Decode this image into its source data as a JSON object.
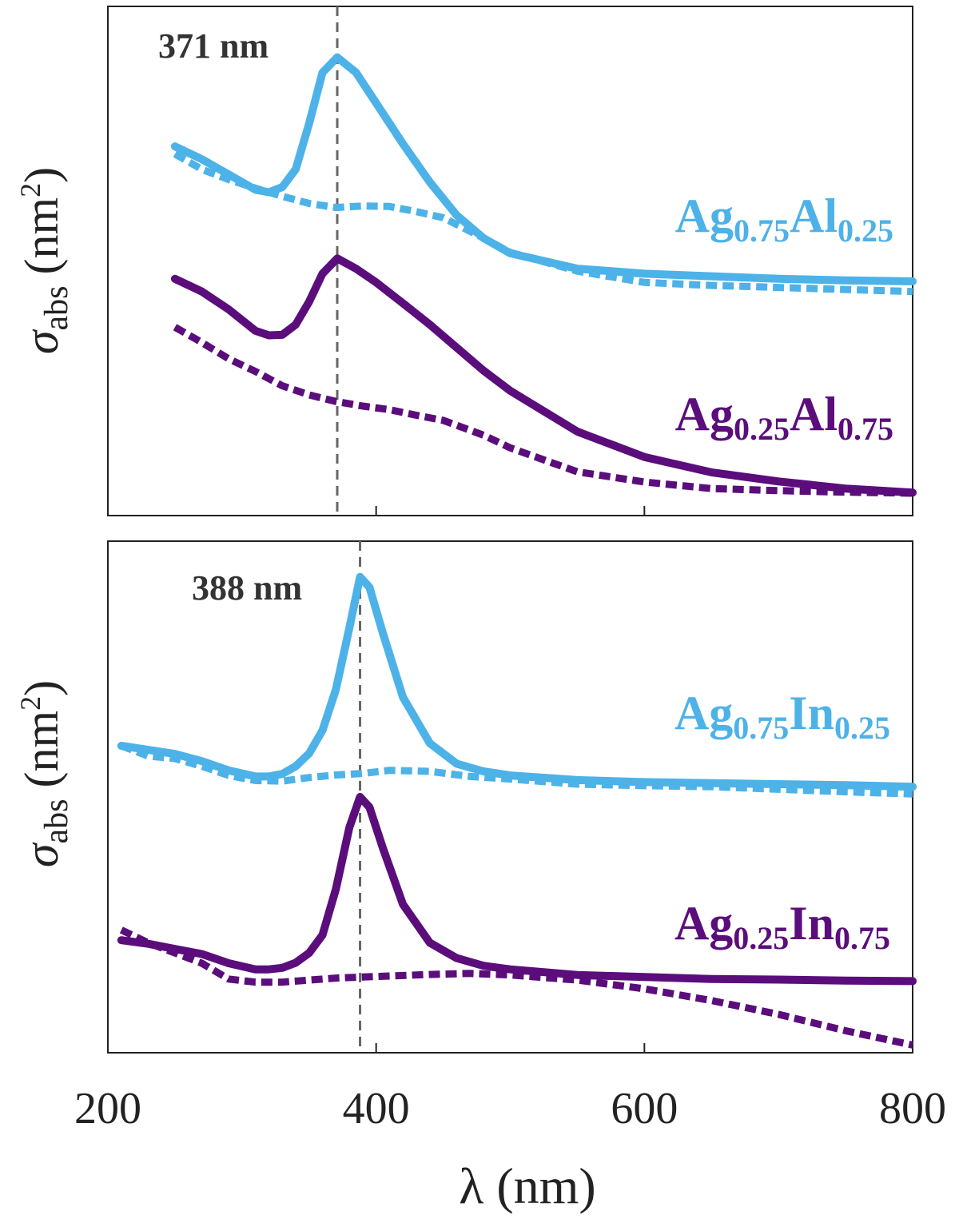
{
  "chart_data": [
    {
      "type": "line",
      "panel": "top",
      "xlabel": "λ (nm)",
      "ylabel_symbol": "σ",
      "ylabel_sub": "abs",
      "ylabel_unit": "(nm",
      "ylabel_sup": "2",
      "ylabel_close": ")",
      "xlim": [
        200,
        800
      ],
      "ylim": [
        0,
        100
      ],
      "xticks": [
        "200",
        "400",
        "600",
        "800"
      ],
      "yticks_shown": false,
      "annotation": {
        "text": "371 nm",
        "x": 371
      },
      "series": [
        {
          "name": "Ag0.75Al0.25",
          "style": "solid",
          "color": "#4db2e8",
          "label_base1": "Ag",
          "label_sub1": "0.75",
          "label_base2": "Al",
          "label_sub2": "0.25",
          "x": [
            250,
            270,
            290,
            310,
            320,
            330,
            340,
            350,
            360,
            371,
            385,
            400,
            420,
            440,
            460,
            480,
            500,
            550,
            600,
            650,
            700,
            750,
            800
          ],
          "y": [
            72.5,
            70,
            67,
            64,
            63.5,
            64.5,
            68,
            77,
            87,
            90,
            87,
            81,
            73,
            65.5,
            59,
            54.5,
            51.5,
            48.5,
            47.5,
            47,
            46.5,
            46.2,
            46
          ]
        },
        {
          "name": "Ag0.75Al0.25 (dashed)",
          "style": "dashed",
          "color": "#4db2e8",
          "x": [
            250,
            270,
            290,
            310,
            330,
            350,
            370,
            390,
            410,
            430,
            450,
            480,
            500,
            550,
            600,
            650,
            700,
            750,
            800
          ],
          "y": [
            71,
            68,
            66,
            64.3,
            62.7,
            61.3,
            60.5,
            60.8,
            60.7,
            59.7,
            58.5,
            54.5,
            51.7,
            48,
            45.8,
            45.2,
            44.8,
            44.4,
            44
          ]
        },
        {
          "name": "Ag0.25Al0.75",
          "style": "solid",
          "color": "#5b0d7c",
          "label_base1": "Ag",
          "label_sub1": "0.25",
          "label_base2": "Al",
          "label_sub2": "0.75",
          "x": [
            250,
            270,
            290,
            310,
            320,
            330,
            340,
            350,
            360,
            371,
            385,
            400,
            420,
            440,
            460,
            480,
            500,
            550,
            600,
            650,
            700,
            750,
            800
          ],
          "y": [
            46.5,
            44,
            40.5,
            36.3,
            35.4,
            35.5,
            37.5,
            42,
            47.5,
            50.5,
            48.5,
            45.8,
            41.7,
            37.5,
            33,
            28.5,
            24.5,
            16.5,
            11.5,
            8.5,
            6.7,
            5.3,
            4.5
          ]
        },
        {
          "name": "Ag0.25Al0.75 (dashed)",
          "style": "dashed",
          "color": "#5b0d7c",
          "x": [
            250,
            270,
            290,
            310,
            330,
            350,
            370,
            390,
            410,
            430,
            450,
            480,
            500,
            550,
            600,
            650,
            700,
            750,
            800
          ],
          "y": [
            37,
            34,
            30.8,
            28.3,
            25.5,
            23.7,
            22.4,
            21.5,
            20.8,
            19.7,
            18.7,
            15.8,
            13.3,
            8.6,
            6.6,
            5.3,
            4.9,
            4.6,
            4.4
          ]
        }
      ]
    },
    {
      "type": "line",
      "panel": "bottom",
      "xlabel": "λ (nm)",
      "ylabel_symbol": "σ",
      "ylabel_sub": "abs",
      "ylabel_unit": "(nm",
      "ylabel_sup": "2",
      "ylabel_close": ")",
      "xlim": [
        200,
        800
      ],
      "ylim": [
        0,
        100
      ],
      "xticks": [
        "200",
        "400",
        "600",
        "800"
      ],
      "yticks_shown": false,
      "annotation": {
        "text": "388 nm",
        "x": 388
      },
      "series": [
        {
          "name": "Ag0.75In0.25",
          "style": "solid",
          "color": "#4db2e8",
          "label_base1": "Ag",
          "label_sub1": "0.75",
          "label_base2": "In",
          "label_sub2": "0.25",
          "x": [
            210,
            230,
            250,
            270,
            290,
            310,
            320,
            330,
            340,
            350,
            360,
            370,
            380,
            388,
            395,
            405,
            420,
            440,
            460,
            480,
            500,
            550,
            600,
            650,
            700,
            750,
            800
          ],
          "y": [
            60,
            59.2,
            58.4,
            57,
            55.2,
            54,
            54,
            54.5,
            56,
            58.5,
            63,
            71,
            83,
            93,
            91,
            82,
            69.5,
            60.5,
            56.5,
            55,
            54.2,
            53.3,
            52.9,
            52.7,
            52.5,
            52.3,
            52
          ]
        },
        {
          "name": "Ag0.75In0.25 (dashed)",
          "style": "dashed",
          "color": "#4db2e8",
          "x": [
            210,
            230,
            250,
            270,
            290,
            310,
            330,
            350,
            370,
            390,
            410,
            440,
            470,
            500,
            550,
            600,
            650,
            700,
            750,
            800
          ],
          "y": [
            60,
            58,
            57.5,
            56,
            54.2,
            53.2,
            53.1,
            53.8,
            54.3,
            54.6,
            55.2,
            55,
            54,
            53.5,
            52.5,
            52.2,
            52,
            51.5,
            51,
            50.6
          ]
        },
        {
          "name": "Ag0.25In0.75",
          "style": "solid",
          "color": "#5b0d7c",
          "label_base1": "Ag",
          "label_sub1": "0.25",
          "label_base2": "In",
          "label_sub2": "0.75",
          "x": [
            210,
            230,
            250,
            270,
            290,
            310,
            320,
            330,
            340,
            350,
            360,
            370,
            380,
            388,
            395,
            405,
            420,
            440,
            460,
            480,
            500,
            550,
            600,
            650,
            700,
            750,
            800
          ],
          "y": [
            22,
            21.3,
            20.3,
            19.3,
            17.5,
            16.3,
            16.3,
            16.6,
            17.6,
            19.5,
            23,
            32,
            44,
            50,
            48,
            40,
            29,
            21.5,
            18.5,
            17,
            16.3,
            15.2,
            14.8,
            14.4,
            14.3,
            14.1,
            14
          ]
        },
        {
          "name": "Ag0.25In0.75 (dashed)",
          "style": "dashed",
          "color": "#5b0d7c",
          "x": [
            210,
            230,
            250,
            270,
            290,
            310,
            330,
            350,
            370,
            390,
            410,
            440,
            470,
            500,
            550,
            600,
            650,
            700,
            750,
            800
          ],
          "y": [
            24,
            21.5,
            19.5,
            17.5,
            14.4,
            13.8,
            13.8,
            14.2,
            14.6,
            14.8,
            15,
            15.3,
            15.5,
            15.2,
            14.2,
            12.5,
            10.2,
            7.5,
            4.3,
            1.5
          ]
        }
      ]
    }
  ]
}
